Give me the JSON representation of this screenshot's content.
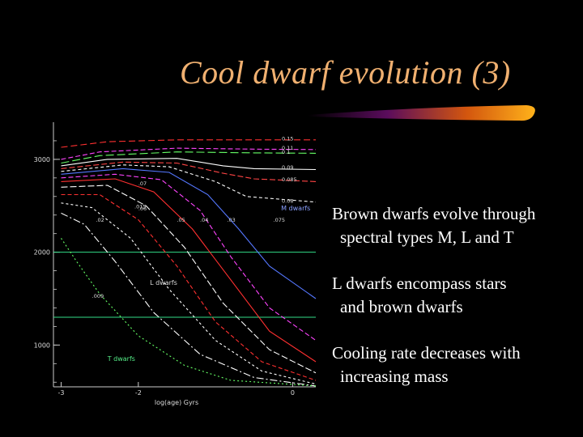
{
  "slide": {
    "title": "Cool dwarf evolution (3)",
    "accent_color": "#f0b070",
    "background": "#000000"
  },
  "bullets": [
    {
      "line1": "Brown dwarfs evolve through",
      "line2": "spectral types M, L and T"
    },
    {
      "line1": "L dwarfs encompass stars",
      "line2": "and brown dwarfs"
    },
    {
      "line1": "Cooling rate decreases with",
      "line2": "increasing mass"
    }
  ],
  "chart_data": {
    "type": "line",
    "xlabel": "log(age) Gyrs",
    "xticks": [
      "-3",
      "-2",
      "0"
    ],
    "ylabel": "",
    "yticks": [
      "3000",
      "2000",
      "1000"
    ],
    "xlim": [
      -3.1,
      0.3
    ],
    "ylim": [
      550,
      3400
    ],
    "region_labels": [
      "M dwarfs",
      "L dwarfs",
      "T dwarfs"
    ],
    "boundaries": [
      2000,
      1300
    ],
    "mass_labels_right": [
      "0.15",
      "0.11",
      "0.1",
      "0.09",
      "0.085",
      "0.08"
    ],
    "mass_labels_inline": [
      ".07",
      ".06",
      ".05",
      ".04",
      ".03",
      ".075",
      ".02",
      ".015",
      ".009"
    ],
    "series": [
      {
        "name": "0.15",
        "color": "#ff3030",
        "dash": "8,4",
        "x": [
          -3.0,
          -2.4,
          -1.5,
          -0.5,
          0.3
        ],
        "y": [
          3130,
          3190,
          3210,
          3210,
          3210
        ]
      },
      {
        "name": "0.11",
        "color": "#ff44ff",
        "dash": "6,3",
        "x": [
          -3.0,
          -2.5,
          -1.5,
          -0.5,
          0.3
        ],
        "y": [
          3000,
          3080,
          3120,
          3110,
          3105
        ]
      },
      {
        "name": "0.1",
        "color": "#66ff66",
        "dash": "10,4",
        "x": [
          -3.0,
          -2.5,
          -1.5,
          -0.5,
          0.3
        ],
        "y": [
          2960,
          3040,
          3080,
          3070,
          3065
        ]
      },
      {
        "name": "0.09",
        "color": "#ffffff",
        "dash": "",
        "x": [
          -3.0,
          -2.4,
          -1.5,
          -0.9,
          -0.5,
          0.3
        ],
        "y": [
          2930,
          3000,
          3010,
          2930,
          2900,
          2890
        ]
      },
      {
        "name": "0.085",
        "color": "#ff4444",
        "dash": "7,3",
        "x": [
          -3.0,
          -2.2,
          -1.5,
          -0.9,
          -0.5,
          0.3
        ],
        "y": [
          2900,
          2970,
          2960,
          2850,
          2790,
          2760
        ]
      },
      {
        "name": "0.08",
        "color": "#ffffff",
        "dash": "4,3",
        "x": [
          -3.0,
          -2.2,
          -1.6,
          -1.0,
          -0.6,
          0.3
        ],
        "y": [
          2870,
          2940,
          2920,
          2760,
          2600,
          2540
        ]
      },
      {
        "name": ".075",
        "color": "#5577ff",
        "dash": "",
        "x": [
          -3.0,
          -2.2,
          -1.6,
          -1.1,
          -0.7,
          -0.3,
          0.3
        ],
        "y": [
          2840,
          2900,
          2860,
          2620,
          2250,
          1850,
          1500
        ]
      },
      {
        "name": ".07",
        "color": "#ff44ff",
        "dash": "6,3",
        "x": [
          -3.0,
          -2.3,
          -1.7,
          -1.2,
          -0.8,
          -0.3,
          0.3
        ],
        "y": [
          2800,
          2840,
          2780,
          2450,
          1950,
          1400,
          1050
        ]
      },
      {
        "name": ".06",
        "color": "#ff3030",
        "dash": "",
        "x": [
          -3.0,
          -2.3,
          -1.8,
          -1.3,
          -0.8,
          -0.3,
          0.3
        ],
        "y": [
          2760,
          2790,
          2650,
          2250,
          1700,
          1150,
          820
        ]
      },
      {
        "name": ".05",
        "color": "#ffffff",
        "dash": "8,3",
        "x": [
          -3.0,
          -2.4,
          -1.9,
          -1.4,
          -0.9,
          -0.3,
          0.3
        ],
        "y": [
          2700,
          2720,
          2500,
          2050,
          1450,
          950,
          700
        ]
      },
      {
        "name": ".04",
        "color": "#ff3030",
        "dash": "5,3",
        "x": [
          -3.0,
          -2.5,
          -2.0,
          -1.5,
          -1.0,
          -0.4,
          0.3
        ],
        "y": [
          2620,
          2620,
          2350,
          1850,
          1250,
          820,
          620
        ]
      },
      {
        "name": ".03",
        "color": "#ffffff",
        "dash": "3,3",
        "x": [
          -3.0,
          -2.6,
          -2.1,
          -1.6,
          -1.0,
          -0.4,
          0.3
        ],
        "y": [
          2530,
          2480,
          2150,
          1600,
          1050,
          720,
          580
        ]
      },
      {
        "name": ".02",
        "color": "#ffffff",
        "dash": "9,3,2,3",
        "x": [
          -3.0,
          -2.7,
          -2.3,
          -1.8,
          -1.2,
          -0.5,
          0.3
        ],
        "y": [
          2420,
          2300,
          1900,
          1350,
          900,
          650,
          560
        ]
      },
      {
        "name": ".009",
        "color": "#66ff66",
        "dash": "2,3",
        "x": [
          -3.0,
          -2.8,
          -2.5,
          -2.0,
          -1.4,
          -0.8,
          0.3
        ],
        "y": [
          2150,
          1900,
          1550,
          1100,
          780,
          620,
          560
        ]
      }
    ]
  }
}
